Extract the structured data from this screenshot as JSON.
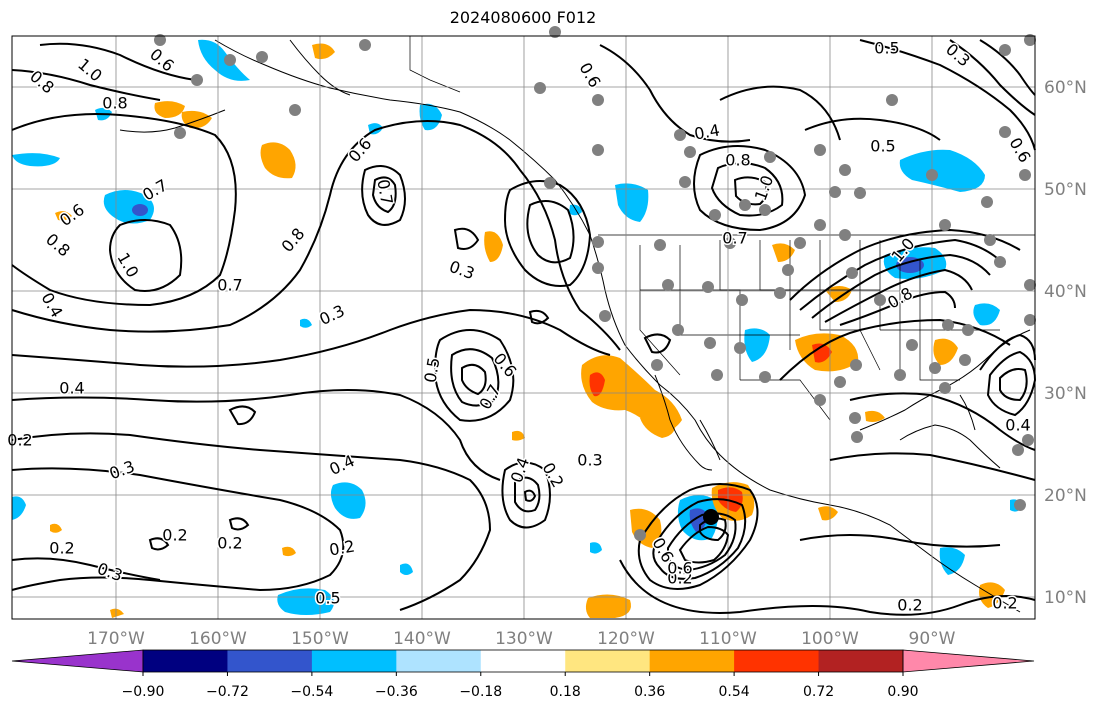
{
  "title": "2024080600 F012",
  "lon_labels": [
    "170°W",
    "160°W",
    "150°W",
    "140°W",
    "130°W",
    "120°W",
    "110°W",
    "100°W",
    "90°W"
  ],
  "lat_labels": [
    "60°N",
    "50°N",
    "40°N",
    "30°N",
    "20°N",
    "10°N"
  ],
  "colorbar": {
    "colors": [
      "#9933cc",
      "#000080",
      "#3355cc",
      "#00bfff",
      "#aee3ff",
      "#ffffff",
      "#ffe680",
      "#ffa500",
      "#ff3300",
      "#b22222",
      "#ff88aa"
    ],
    "tick_labels": [
      "−0.90",
      "−0.72",
      "−0.54",
      "−0.36",
      "−0.18",
      "0.18",
      "0.36",
      "0.54",
      "0.72",
      "0.90"
    ]
  },
  "contour_labels": [
    "0.8",
    "1.0",
    "0.8",
    "0.6",
    "0.7",
    "0.6",
    "0.8",
    "1.0",
    "0.7",
    "0.8",
    "0.4",
    "0.7",
    "0.6",
    "0.3",
    "0.3",
    "0.5",
    "0.6",
    "0.7",
    "0.4",
    "0.3",
    "0.4",
    "0.2",
    "0.2",
    "0.3",
    "0.2",
    "0.2",
    "0.2",
    "0.5",
    "0.4",
    "0.2",
    "0.3",
    "0.4",
    "0.8",
    "1.0",
    "0.7",
    "0.6",
    "0.2",
    "0.5",
    "0.5",
    "0.3",
    "1.0",
    "0.8",
    "0.6",
    "0.4",
    "0.2",
    "0.2",
    "0.6",
    "0.6"
  ]
}
